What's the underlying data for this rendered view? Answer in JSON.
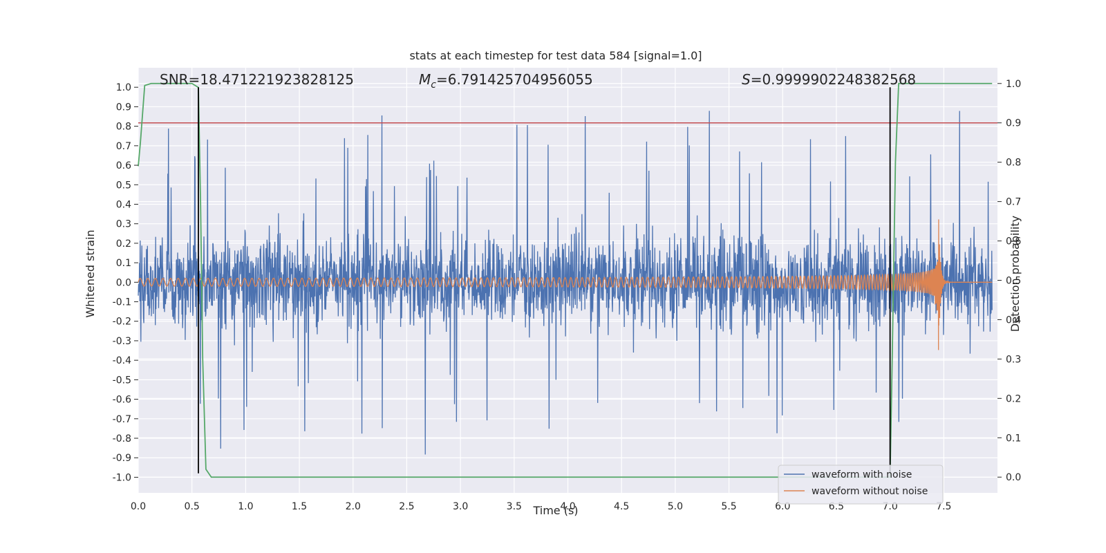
{
  "chart_data": {
    "type": "line",
    "title": "stats at each timestep for test data 584 [signal=1.0]",
    "xlabel": "Time (s)",
    "ylabel_left": "Whitened strain",
    "ylabel_right": "Detection probability",
    "xlim": [
      0.0,
      8.0
    ],
    "ylim_left": [
      -1.08,
      1.1
    ],
    "ylim_right": [
      -0.04,
      1.04
    ],
    "x_ticks": [
      "0.0",
      "0.5",
      "1.0",
      "1.5",
      "2.0",
      "2.5",
      "3.0",
      "3.5",
      "4.0",
      "4.5",
      "5.0",
      "5.5",
      "6.0",
      "6.5",
      "7.0",
      "7.5"
    ],
    "y_left_ticks": [
      "1.0",
      "0.9",
      "0.8",
      "0.7",
      "0.6",
      "0.5",
      "0.4",
      "0.3",
      "0.2",
      "0.1",
      "0.0",
      "-0.1",
      "-0.2",
      "-0.3",
      "-0.4",
      "-0.5",
      "-0.6",
      "-0.7",
      "-0.8",
      "-0.9",
      "-1.0"
    ],
    "y_right_ticks": [
      "1.0",
      "0.9",
      "0.8",
      "0.7",
      "0.6",
      "0.5",
      "0.4",
      "0.3",
      "0.2",
      "0.1",
      "0.0"
    ],
    "grid": true,
    "legend_position": "bottom-right",
    "annotations": {
      "snr": "SNR=18.471221923828125",
      "mc_symbol": "M",
      "mc_sub": "c",
      "mc_value": "=6.791425704956055",
      "s_symbol": "S",
      "s_value": "=0.9999902248382568"
    },
    "series": [
      {
        "name": "waveform with noise",
        "color": "#4c72b0",
        "axis": "left",
        "description_values": {
          "envelope": [
            -1.0,
            1.0
          ],
          "typical_amplitude": 0.35
        }
      },
      {
        "name": "waveform without noise",
        "color": "#dd8452",
        "axis": "left",
        "chirp": {
          "start_amplitude": 0.02,
          "peak_amplitude": 0.38,
          "peak_time": 7.45,
          "min_peak": -0.57
        }
      },
      {
        "color": "#55a868",
        "axis": "right",
        "points": [
          [
            0.0,
            0.79
          ],
          [
            0.02,
            0.85
          ],
          [
            0.06,
            0.995
          ],
          [
            0.12,
            1.0
          ],
          [
            0.5,
            1.0
          ],
          [
            0.56,
            0.99
          ],
          [
            0.58,
            0.7
          ],
          [
            0.6,
            0.3
          ],
          [
            0.63,
            0.02
          ],
          [
            0.68,
            0.0
          ],
          [
            7.0,
            0.0
          ],
          [
            7.02,
            0.3
          ],
          [
            7.05,
            0.8
          ],
          [
            7.08,
            1.0
          ],
          [
            7.95,
            1.0
          ]
        ]
      },
      {
        "color": "#c44e52",
        "axis": "right",
        "constant": 0.9
      },
      {
        "color": "#000000",
        "axis": "left",
        "vertical_lines": [
          0.56,
          7.0
        ],
        "y_range": [
          -0.98,
          1.0
        ]
      }
    ],
    "colors": {
      "plot_background": "#eaeaf2",
      "grid": "#ffffff",
      "text": "#262626"
    }
  }
}
